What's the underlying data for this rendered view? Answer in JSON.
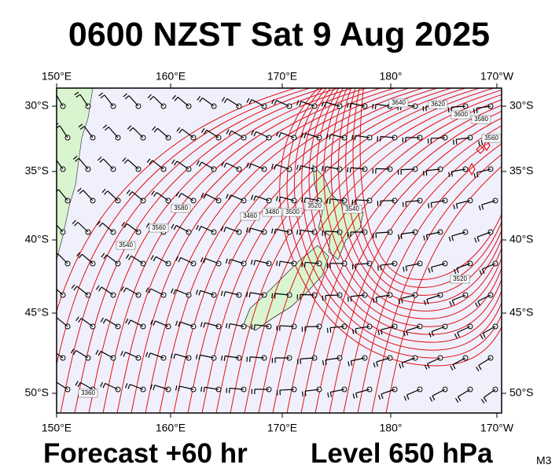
{
  "header": {
    "title": "0600 NZST Sat 9 Aug 2025"
  },
  "map": {
    "lon_labels": [
      "150°E",
      "160°E",
      "170°E",
      "180°",
      "170°W"
    ],
    "lat_labels": [
      "30°S",
      "35°S",
      "40°S",
      "45°S",
      "50°S"
    ],
    "contour_labels": [
      "3640",
      "3620",
      "3600",
      "3580",
      "3560",
      "3540",
      "3520",
      "3500",
      "3480",
      "3460",
      "3360",
      "3580",
      "3560",
      "3540",
      "3520"
    ]
  },
  "footer": {
    "forecast": "Forecast +60 hr",
    "level": "Level 650 hPa",
    "code": "M3"
  }
}
